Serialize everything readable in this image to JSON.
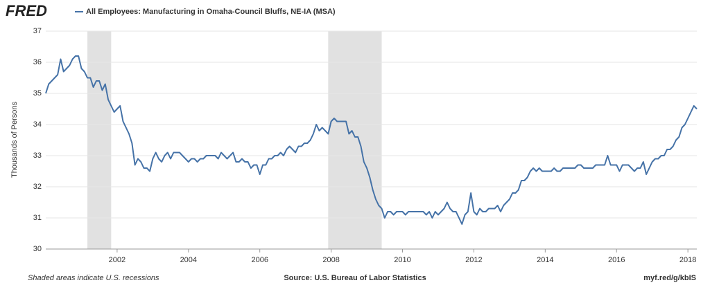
{
  "logo": "FRED",
  "footer": {
    "note": "Shaded areas indicate U.S. recessions",
    "source": "Source: U.S. Bureau of Labor Statistics",
    "link": "myf.red/g/kbIS"
  },
  "chart_data": {
    "type": "line",
    "y_label": "Thousands of Persons",
    "x": [
      "2000-01",
      "2000-02",
      "2000-03",
      "2000-04",
      "2000-05",
      "2000-06",
      "2000-07",
      "2000-08",
      "2000-09",
      "2000-10",
      "2000-11",
      "2000-12",
      "2001-01",
      "2001-02",
      "2001-03",
      "2001-04",
      "2001-05",
      "2001-06",
      "2001-07",
      "2001-08",
      "2001-09",
      "2001-10",
      "2001-11",
      "2001-12",
      "2002-01",
      "2002-02",
      "2002-03",
      "2002-04",
      "2002-05",
      "2002-06",
      "2002-07",
      "2002-08",
      "2002-09",
      "2002-10",
      "2002-11",
      "2002-12",
      "2003-01",
      "2003-02",
      "2003-03",
      "2003-04",
      "2003-05",
      "2003-06",
      "2003-07",
      "2003-08",
      "2003-09",
      "2003-10",
      "2003-11",
      "2003-12",
      "2004-01",
      "2004-02",
      "2004-03",
      "2004-04",
      "2004-05",
      "2004-06",
      "2004-07",
      "2004-08",
      "2004-09",
      "2004-10",
      "2004-11",
      "2004-12",
      "2005-01",
      "2005-02",
      "2005-03",
      "2005-04",
      "2005-05",
      "2005-06",
      "2005-07",
      "2005-08",
      "2005-09",
      "2005-10",
      "2005-11",
      "2005-12",
      "2006-01",
      "2006-02",
      "2006-03",
      "2006-04",
      "2006-05",
      "2006-06",
      "2006-07",
      "2006-08",
      "2006-09",
      "2006-10",
      "2006-11",
      "2006-12",
      "2007-01",
      "2007-02",
      "2007-03",
      "2007-04",
      "2007-05",
      "2007-06",
      "2007-07",
      "2007-08",
      "2007-09",
      "2007-10",
      "2007-11",
      "2007-12",
      "2008-01",
      "2008-02",
      "2008-03",
      "2008-04",
      "2008-05",
      "2008-06",
      "2008-07",
      "2008-08",
      "2008-09",
      "2008-10",
      "2008-11",
      "2008-12",
      "2009-01",
      "2009-02",
      "2009-03",
      "2009-04",
      "2009-05",
      "2009-06",
      "2009-07",
      "2009-08",
      "2009-09",
      "2009-10",
      "2009-11",
      "2009-12",
      "2010-01",
      "2010-02",
      "2010-03",
      "2010-04",
      "2010-05",
      "2010-06",
      "2010-07",
      "2010-08",
      "2010-09",
      "2010-10",
      "2010-11",
      "2010-12",
      "2011-01",
      "2011-02",
      "2011-03",
      "2011-04",
      "2011-05",
      "2011-06",
      "2011-07",
      "2011-08",
      "2011-09",
      "2011-10",
      "2011-11",
      "2011-12",
      "2012-01",
      "2012-02",
      "2012-03",
      "2012-04",
      "2012-05",
      "2012-06",
      "2012-07",
      "2012-08",
      "2012-09",
      "2012-10",
      "2012-11",
      "2012-12",
      "2013-01",
      "2013-02",
      "2013-03",
      "2013-04",
      "2013-05",
      "2013-06",
      "2013-07",
      "2013-08",
      "2013-09",
      "2013-10",
      "2013-11",
      "2013-12",
      "2014-01",
      "2014-02",
      "2014-03",
      "2014-04",
      "2014-05",
      "2014-06",
      "2014-07",
      "2014-08",
      "2014-09",
      "2014-10",
      "2014-11",
      "2014-12",
      "2015-01",
      "2015-02",
      "2015-03",
      "2015-04",
      "2015-05",
      "2015-06",
      "2015-07",
      "2015-08",
      "2015-09",
      "2015-10",
      "2015-11",
      "2015-12",
      "2016-01",
      "2016-02",
      "2016-03",
      "2016-04",
      "2016-05",
      "2016-06",
      "2016-07",
      "2016-08",
      "2016-09",
      "2016-10",
      "2016-11",
      "2016-12",
      "2017-01",
      "2017-02",
      "2017-03",
      "2017-04",
      "2017-05",
      "2017-06",
      "2017-07",
      "2017-08",
      "2017-09",
      "2017-10",
      "2017-11",
      "2017-12",
      "2018-01",
      "2018-02",
      "2018-03",
      "2018-04"
    ],
    "series": [
      {
        "name": "All Employees: Manufacturing in Omaha-Council Bluffs, NE-IA (MSA)",
        "color": "#4572a7",
        "values": [
          35.0,
          35.3,
          35.4,
          35.5,
          35.6,
          36.1,
          35.7,
          35.8,
          35.9,
          36.1,
          36.2,
          36.2,
          35.8,
          35.7,
          35.5,
          35.5,
          35.2,
          35.4,
          35.4,
          35.1,
          35.3,
          34.8,
          34.6,
          34.4,
          34.5,
          34.6,
          34.1,
          33.9,
          33.7,
          33.4,
          32.7,
          32.9,
          32.8,
          32.6,
          32.6,
          32.5,
          32.9,
          33.1,
          32.9,
          32.8,
          33.0,
          33.1,
          32.9,
          33.1,
          33.1,
          33.1,
          33.0,
          32.9,
          32.8,
          32.9,
          32.9,
          32.8,
          32.9,
          32.9,
          33.0,
          33.0,
          33.0,
          33.0,
          32.9,
          33.1,
          33.0,
          32.9,
          33.0,
          33.1,
          32.8,
          32.8,
          32.9,
          32.8,
          32.8,
          32.6,
          32.7,
          32.7,
          32.4,
          32.7,
          32.7,
          32.9,
          32.9,
          33.0,
          33.0,
          33.1,
          33.0,
          33.2,
          33.3,
          33.2,
          33.1,
          33.3,
          33.3,
          33.4,
          33.4,
          33.5,
          33.7,
          34.0,
          33.8,
          33.9,
          33.8,
          33.7,
          34.1,
          34.2,
          34.1,
          34.1,
          34.1,
          34.1,
          33.7,
          33.8,
          33.6,
          33.6,
          33.3,
          32.8,
          32.6,
          32.3,
          31.9,
          31.6,
          31.4,
          31.3,
          31.0,
          31.2,
          31.2,
          31.1,
          31.2,
          31.2,
          31.2,
          31.1,
          31.2,
          31.2,
          31.2,
          31.2,
          31.2,
          31.2,
          31.1,
          31.2,
          31.0,
          31.2,
          31.1,
          31.2,
          31.3,
          31.5,
          31.3,
          31.2,
          31.2,
          31.0,
          30.8,
          31.1,
          31.2,
          31.8,
          31.2,
          31.1,
          31.3,
          31.2,
          31.2,
          31.3,
          31.3,
          31.3,
          31.4,
          31.2,
          31.4,
          31.5,
          31.6,
          31.8,
          31.8,
          31.9,
          32.2,
          32.2,
          32.3,
          32.5,
          32.6,
          32.5,
          32.6,
          32.5,
          32.5,
          32.5,
          32.5,
          32.6,
          32.5,
          32.5,
          32.6,
          32.6,
          32.6,
          32.6,
          32.6,
          32.7,
          32.7,
          32.6,
          32.6,
          32.6,
          32.6,
          32.7,
          32.7,
          32.7,
          32.7,
          33.0,
          32.7,
          32.7,
          32.7,
          32.5,
          32.7,
          32.7,
          32.7,
          32.6,
          32.5,
          32.6,
          32.6,
          32.8,
          32.4,
          32.6,
          32.8,
          32.9,
          32.9,
          33.0,
          33.0,
          33.2,
          33.2,
          33.3,
          33.5,
          33.6,
          33.9,
          34.0,
          34.2,
          34.4,
          34.6,
          34.5
        ]
      }
    ],
    "recessions": [
      [
        "2001-03",
        "2001-11"
      ],
      [
        "2007-12",
        "2009-06"
      ]
    ],
    "recession_color": "#e1e1e1",
    "xlim": [
      "2000-01",
      "2018-04"
    ],
    "xticks": [
      2002,
      2004,
      2006,
      2008,
      2010,
      2012,
      2014,
      2016,
      2018
    ],
    "ylim": [
      30,
      37
    ],
    "yticks": [
      30,
      31,
      32,
      33,
      34,
      35,
      36,
      37
    ],
    "grid": true
  }
}
